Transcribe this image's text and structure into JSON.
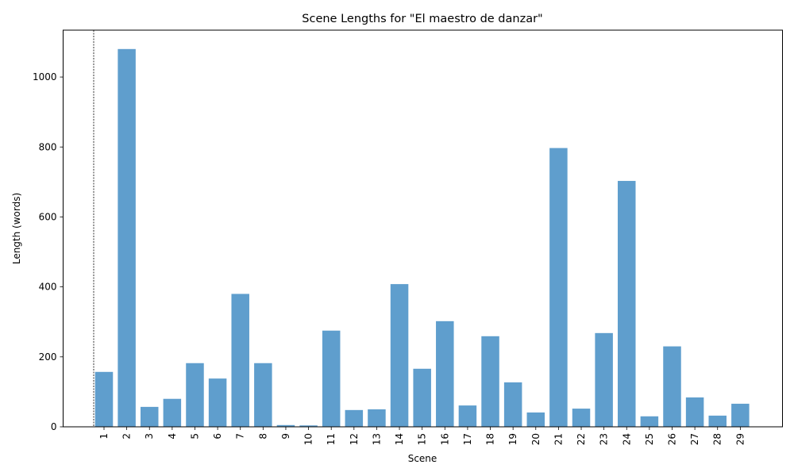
{
  "chart_data": {
    "type": "bar",
    "title": "Scene Lengths for \"El maestro de danzar\"",
    "xlabel": "Scene",
    "ylabel": "Length (words)",
    "categories": [
      "1",
      "2",
      "3",
      "4",
      "5",
      "6",
      "7",
      "8",
      "9",
      "10",
      "11",
      "12",
      "13",
      "14",
      "15",
      "16",
      "17",
      "18",
      "19",
      "20",
      "21",
      "22",
      "23",
      "24",
      "25",
      "26",
      "27",
      "28",
      "29"
    ],
    "values": [
      157,
      1080,
      57,
      80,
      182,
      138,
      380,
      182,
      5,
      4,
      275,
      48,
      50,
      408,
      166,
      302,
      61,
      259,
      127,
      41,
      797,
      52,
      268,
      703,
      30,
      230,
      84,
      32,
      66
    ],
    "ylim": [
      0,
      1134
    ],
    "yticks": [
      0,
      200,
      400,
      600,
      800,
      1000
    ],
    "bar_color": "#5f9ecd",
    "reference_line": {
      "style": "dashed",
      "position": "before first scene"
    },
    "grid": false
  }
}
